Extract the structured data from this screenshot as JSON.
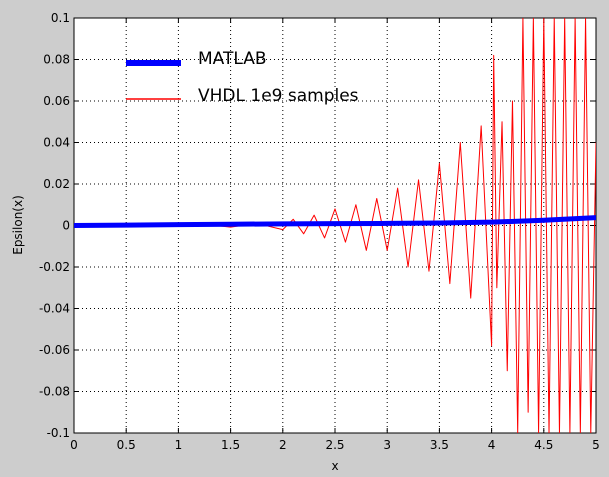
{
  "chart_data": {
    "type": "line",
    "xlabel": "x",
    "ylabel": "Epsilon(x)",
    "xlim": [
      0,
      5
    ],
    "ylim": [
      -0.1,
      0.1
    ],
    "x_ticks": [
      "0",
      "0.5",
      "1",
      "1.5",
      "2",
      "2.5",
      "3",
      "3.5",
      "4",
      "4.5",
      "5"
    ],
    "y_ticks": [
      "0.1",
      "0.08",
      "0.06",
      "0.04",
      "0.02",
      "0",
      "-0.02",
      "-0.04",
      "-0.06",
      "-0.08",
      "-0.1"
    ],
    "grid": true,
    "legend_position": "top-left",
    "series": [
      {
        "name": "MATLAB",
        "color": "#0000ff",
        "x": [
          0,
          0.5,
          1,
          1.5,
          2,
          2.5,
          3,
          3.5,
          4,
          4.5,
          5
        ],
        "y": [
          0,
          0.0002,
          0.0004,
          0.0006,
          0.0008,
          0.0009,
          0.001,
          0.0012,
          0.0016,
          0.0025,
          0.0038
        ]
      },
      {
        "name": "VHDL 1e9 samples",
        "color": "#ff0000",
        "x": [
          0.0,
          0.25,
          0.5,
          0.75,
          1.0,
          1.25,
          1.5,
          1.75,
          2.0,
          2.1,
          2.2,
          2.3,
          2.4,
          2.5,
          2.6,
          2.7,
          2.8,
          2.9,
          3.0,
          3.1,
          3.2,
          3.3,
          3.4,
          3.5,
          3.6,
          3.7,
          3.8,
          3.9,
          4.0,
          4.02,
          4.05,
          4.1,
          4.15,
          4.2,
          4.25,
          4.3,
          4.35,
          4.4,
          4.45,
          4.5,
          4.55,
          4.6,
          4.65,
          4.7,
          4.75,
          4.8,
          4.85,
          4.9,
          4.95,
          5.0
        ],
        "y": [
          0.0,
          0.0003,
          -0.0004,
          0.0005,
          -0.0005,
          0.0006,
          -0.0008,
          0.001,
          -0.002,
          0.003,
          -0.004,
          0.005,
          -0.006,
          0.008,
          -0.008,
          0.01,
          -0.012,
          0.013,
          -0.012,
          0.018,
          -0.02,
          0.022,
          -0.022,
          0.03,
          -0.028,
          0.04,
          -0.035,
          0.048,
          -0.058,
          0.082,
          -0.03,
          0.05,
          -0.07,
          0.06,
          -0.1,
          0.1,
          -0.09,
          0.1,
          -0.1,
          0.1,
          -0.1,
          0.1,
          -0.1,
          0.1,
          -0.1,
          0.1,
          -0.1,
          0.1,
          -0.1,
          0.04
        ]
      }
    ]
  }
}
